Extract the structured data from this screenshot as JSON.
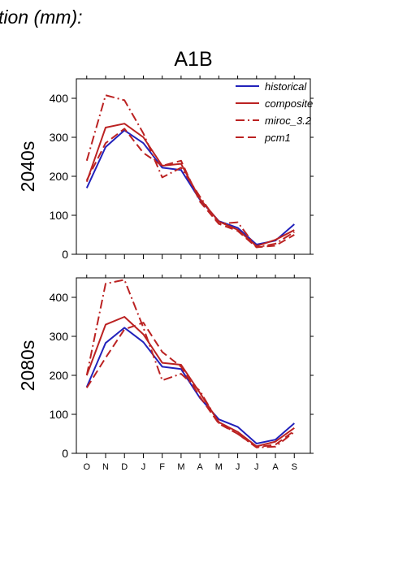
{
  "header": {
    "partial_title": "tion (mm):"
  },
  "chart_data": [
    {
      "type": "line",
      "title": "A1B",
      "ylabel": "2040s",
      "categories": [
        "O",
        "N",
        "D",
        "J",
        "F",
        "M",
        "A",
        "M",
        "J",
        "J",
        "A",
        "S"
      ],
      "ylim": [
        0,
        450
      ],
      "yticks": [
        0,
        100,
        200,
        300,
        400
      ],
      "grid": false,
      "legend": "top-right",
      "series": [
        {
          "name": "historical",
          "style": "solid",
          "color": "#2222bb",
          "values": [
            170,
            275,
            318,
            285,
            222,
            216,
            140,
            85,
            68,
            25,
            35,
            77
          ]
        },
        {
          "name": "composite",
          "style": "solid",
          "color": "#bb2222",
          "values": [
            186,
            325,
            335,
            300,
            227,
            232,
            142,
            84,
            63,
            21,
            37,
            62
          ]
        },
        {
          "name": "miroc_3.2",
          "style": "dashdot",
          "color": "#bb2222",
          "values": [
            240,
            408,
            395,
            310,
            197,
            222,
            148,
            78,
            82,
            18,
            27,
            57
          ]
        },
        {
          "name": "pcm1",
          "style": "dashed",
          "color": "#bb2222",
          "values": [
            190,
            285,
            322,
            260,
            227,
            240,
            135,
            78,
            60,
            18,
            22,
            50
          ]
        }
      ]
    },
    {
      "type": "line",
      "ylabel": "2080s",
      "categories": [
        "O",
        "N",
        "D",
        "J",
        "F",
        "M",
        "A",
        "M",
        "J",
        "J",
        "A",
        "S"
      ],
      "ylim": [
        0,
        450
      ],
      "yticks": [
        0,
        100,
        200,
        300,
        400
      ],
      "grid": false,
      "series": [
        {
          "name": "historical",
          "style": "solid",
          "color": "#2222bb",
          "values": [
            170,
            283,
            322,
            285,
            222,
            216,
            142,
            87,
            68,
            25,
            35,
            77
          ]
        },
        {
          "name": "composite",
          "style": "solid",
          "color": "#bb2222",
          "values": [
            200,
            330,
            350,
            305,
            232,
            227,
            155,
            80,
            55,
            18,
            30,
            65
          ]
        },
        {
          "name": "miroc_3.2",
          "style": "dashdot",
          "color": "#bb2222",
          "values": [
            200,
            435,
            445,
            322,
            187,
            204,
            160,
            78,
            50,
            15,
            17,
            55
          ]
        },
        {
          "name": "pcm1",
          "style": "dashed",
          "color": "#bb2222",
          "values": [
            168,
            245,
            318,
            335,
            260,
            222,
            145,
            76,
            50,
            16,
            22,
            58
          ]
        }
      ]
    }
  ]
}
